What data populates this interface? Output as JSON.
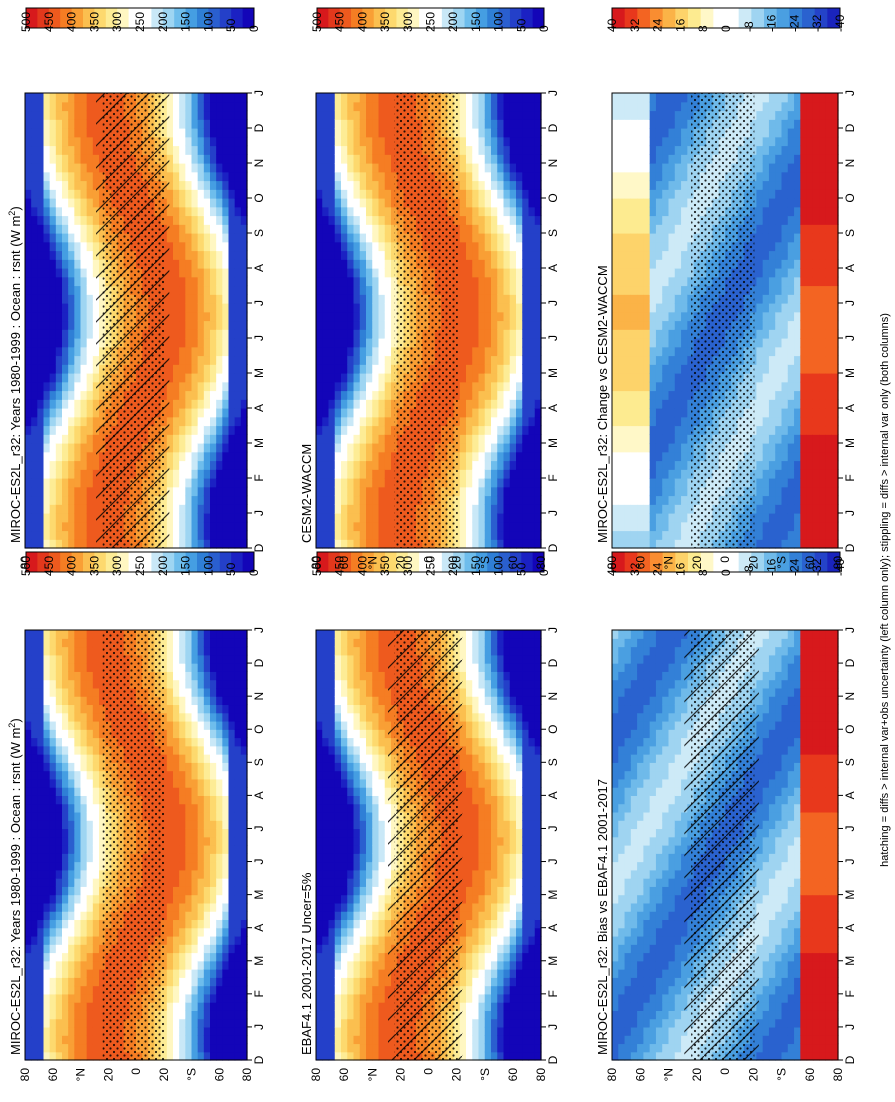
{
  "footnote": "hatching = diffs > internal var+obs uncertainty (left column only); stippling = diffs > internal var only (both columns)",
  "months": [
    "D",
    "J",
    "F",
    "M",
    "A",
    "M",
    "J",
    "J",
    "A",
    "S",
    "O",
    "N",
    "D",
    "J"
  ],
  "lat_ticks": [
    "80",
    "60",
    "°N",
    "20",
    "0",
    "20",
    "°S",
    "60",
    "80"
  ],
  "colors": {
    "abs": [
      "#d7191c",
      "#e3381c",
      "#ee5a1e",
      "#f57d23",
      "#f99f35",
      "#fbbf4f",
      "#fdd96e",
      "#fdec95",
      "#fff7c2",
      "#ffffff",
      "#ffffff",
      "#c9e8f7",
      "#9ed5f2",
      "#6ebdec",
      "#459ee2",
      "#2f7fd6",
      "#2a5fcf",
      "#2440c9",
      "#1b21c3",
      "#1305b8"
    ],
    "diff": [
      "#d7191c",
      "#e8381c",
      "#f36422",
      "#f98d31",
      "#fbb347",
      "#fdd36a",
      "#fdeb90",
      "#fff8c8",
      "#ffffff",
      "#ffffff",
      "#cdeaf7",
      "#9fd4f1",
      "#6fbaea",
      "#4a9fe1",
      "#3380d7",
      "#2a62cf",
      "#2443c8",
      "#1a24bd"
    ]
  },
  "chart_data": [
    {
      "id": "p1",
      "type": "heatmap",
      "title": "MIROC-ES2L_r32: Years 1980-1999 : Ocean : rsnt (W m",
      "title_sup": "2",
      "title_tail": ")",
      "x": "months",
      "y": "latitude",
      "colorbar": {
        "labels": [
          "500",
          "450",
          "400",
          "350",
          "300",
          "250",
          "200",
          "150",
          "100",
          "50",
          "0"
        ],
        "range": [
          0,
          500
        ]
      },
      "overlay": "hatching+stippling"
    },
    {
      "id": "p2",
      "type": "heatmap",
      "title": "MIROC-ES2L_r32: Years 1980-1999 : Ocean : rsnt (W m",
      "title_sup": "2",
      "title_tail": ")",
      "x": "months",
      "y": "latitude",
      "colorbar": {
        "labels": [
          "500",
          "450",
          "400",
          "350",
          "300",
          "250",
          "200",
          "150",
          "100",
          "50",
          "0"
        ],
        "range": [
          0,
          500
        ]
      },
      "overlay": "stippling"
    },
    {
      "id": "p3",
      "type": "heatmap",
      "title": "EBAF4.1 2001-2017 Uncer=5%",
      "x": "months",
      "y": "latitude",
      "colorbar": {
        "labels": [
          "500",
          "450",
          "400",
          "350",
          "300",
          "250",
          "200",
          "150",
          "100",
          "50",
          "0"
        ],
        "range": [
          0,
          500
        ]
      },
      "overlay": "hatching+stippling"
    },
    {
      "id": "p4",
      "type": "heatmap",
      "title": "CESM2-WACCM",
      "x": "months",
      "y": "latitude",
      "colorbar": {
        "labels": [
          "500",
          "450",
          "400",
          "350",
          "300",
          "250",
          "200",
          "150",
          "100",
          "50",
          "0"
        ],
        "range": [
          0,
          500
        ]
      },
      "overlay": "stippling"
    },
    {
      "id": "p5",
      "type": "heatmap",
      "title": "MIROC-ES2L_r32: Bias vs EBAF4.1 2001-2017",
      "x": "months",
      "y": "latitude",
      "colorbar": {
        "labels": [
          "40",
          "32",
          "24",
          "16",
          "8",
          "0",
          "-8",
          "-16",
          "-24",
          "-32",
          "-40"
        ],
        "range": [
          -40,
          40
        ]
      },
      "overlay": "hatching+stippling"
    },
    {
      "id": "p6",
      "type": "heatmap",
      "title": "MIROC-ES2L_r32: Change vs CESM2-WACCM",
      "x": "months",
      "y": "latitude",
      "colorbar": {
        "labels": [
          "40",
          "32",
          "24",
          "16",
          "8",
          "0",
          "-8",
          "-16",
          "-24",
          "-32",
          "-40"
        ],
        "range": [
          -40,
          40
        ]
      },
      "overlay": "stippling"
    }
  ]
}
